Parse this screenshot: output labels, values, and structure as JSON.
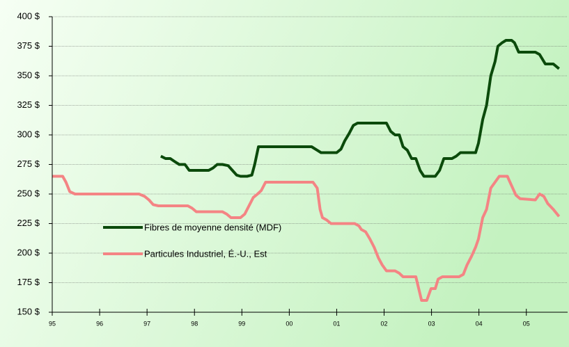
{
  "chart_data": {
    "type": "line",
    "xlim": [
      1995,
      2005.9
    ],
    "xticks": [
      {
        "value": 1995,
        "label": "95"
      },
      {
        "value": 1996,
        "label": "96"
      },
      {
        "value": 1997,
        "label": "97"
      },
      {
        "value": 1998,
        "label": "98"
      },
      {
        "value": 1999,
        "label": "99"
      },
      {
        "value": 2000,
        "label": "00"
      },
      {
        "value": 2001,
        "label": "01"
      },
      {
        "value": 2002,
        "label": "02"
      },
      {
        "value": 2003,
        "label": "03"
      },
      {
        "value": 2004,
        "label": "04"
      },
      {
        "value": 2005,
        "label": "05"
      }
    ],
    "ylim": [
      150,
      400
    ],
    "yticks": [
      {
        "value": 150,
        "label": "150 $"
      },
      {
        "value": 175,
        "label": "175 $"
      },
      {
        "value": 200,
        "label": "200 $"
      },
      {
        "value": 225,
        "label": "225 $"
      },
      {
        "value": 250,
        "label": "250 $"
      },
      {
        "value": 275,
        "label": "275 $"
      },
      {
        "value": 300,
        "label": "300 $"
      },
      {
        "value": 325,
        "label": "325 $"
      },
      {
        "value": 350,
        "label": "350 $"
      },
      {
        "value": 375,
        "label": "375 $"
      },
      {
        "value": 400,
        "label": "400 $"
      }
    ],
    "grid": true,
    "series": [
      {
        "name": "Fibres de moyenne densité (MDF)",
        "color": "#0b4a0b",
        "x": [
          1997.29,
          1997.39,
          1997.49,
          1997.6,
          1997.68,
          1997.8,
          1997.89,
          1998.01,
          1998.15,
          1998.3,
          1998.39,
          1998.48,
          1998.59,
          1998.71,
          1998.8,
          1998.89,
          1998.97,
          1999.11,
          1999.21,
          1999.27,
          1999.35,
          1999.47,
          2000.47,
          2000.59,
          2000.67,
          2000.79,
          2001.0,
          2001.09,
          2001.17,
          2001.26,
          2001.35,
          2001.44,
          2002.05,
          2002.14,
          2002.23,
          2002.32,
          2002.4,
          2002.49,
          2002.58,
          2002.67,
          2002.76,
          2002.84,
          2003.08,
          2003.17,
          2003.26,
          2003.43,
          2003.52,
          2003.61,
          2003.93,
          2003.99,
          2004.08,
          2004.16,
          2004.25,
          2004.34,
          2004.4,
          2004.49,
          2004.57,
          2004.69,
          2004.75,
          2004.84,
          2005.19,
          2005.28,
          2005.4,
          2005.57,
          2005.69
        ],
        "values": [
          282,
          280,
          280,
          277,
          275,
          275,
          270,
          270,
          270,
          270,
          272,
          275,
          275,
          274,
          270,
          266,
          265,
          265,
          266,
          275,
          290,
          290,
          290,
          287,
          285,
          285,
          285,
          288,
          295,
          301,
          308,
          310,
          310,
          303,
          300,
          300,
          290,
          287,
          280,
          280,
          270,
          265,
          265,
          270,
          280,
          280,
          282,
          285,
          285,
          293,
          313,
          325,
          350,
          362,
          375,
          378,
          380,
          380,
          378,
          370,
          370,
          368,
          360,
          360,
          356
        ]
      },
      {
        "name": "Particules Industriel, É.-U., Est",
        "color": "#f48484",
        "x": [
          1995.0,
          1995.22,
          1995.29,
          1995.37,
          1995.48,
          1996.83,
          1996.95,
          1997.04,
          1997.13,
          1997.24,
          1997.86,
          1997.95,
          1998.04,
          1998.59,
          1998.68,
          1998.77,
          1998.97,
          1999.06,
          1999.15,
          1999.24,
          1999.33,
          1999.41,
          1999.5,
          2000.5,
          2000.59,
          2000.65,
          2000.7,
          2000.79,
          2000.88,
          2001.38,
          2001.47,
          2001.52,
          2001.61,
          2001.7,
          2001.79,
          2001.88,
          2001.96,
          2002.05,
          2002.23,
          2002.32,
          2002.4,
          2002.67,
          2002.73,
          2002.79,
          2002.9,
          2002.99,
          2003.08,
          2003.14,
          2003.23,
          2003.58,
          2003.67,
          2003.75,
          2003.84,
          2003.93,
          2003.99,
          2004.08,
          2004.16,
          2004.25,
          2004.34,
          2004.43,
          2004.6,
          2004.69,
          2004.78,
          2004.87,
          2005.19,
          2005.28,
          2005.37,
          2005.45,
          2005.57,
          2005.69
        ],
        "values": [
          265,
          265,
          260,
          252,
          250,
          250,
          248,
          245,
          241,
          240,
          240,
          238,
          235,
          235,
          233,
          230,
          230,
          233,
          240,
          247,
          250,
          253,
          260,
          260,
          255,
          237,
          230,
          228,
          225,
          225,
          223,
          220,
          218,
          212,
          205,
          196,
          190,
          185,
          185,
          183,
          180,
          180,
          170,
          160,
          160,
          170,
          170,
          178,
          180,
          180,
          182,
          190,
          197,
          205,
          212,
          230,
          237,
          255,
          260,
          265,
          265,
          257,
          249,
          246,
          245,
          250,
          248,
          242,
          237,
          231
        ]
      }
    ]
  }
}
